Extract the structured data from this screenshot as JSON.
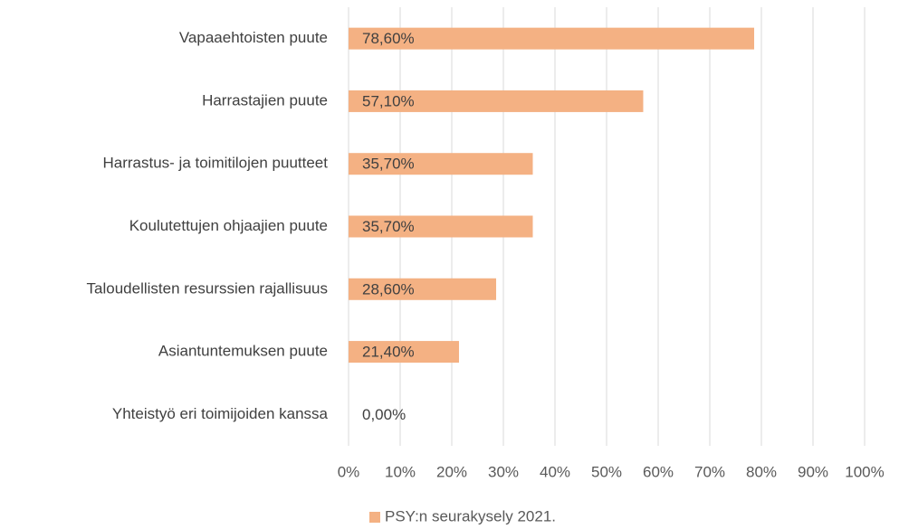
{
  "chart_data": {
    "type": "bar",
    "orientation": "horizontal",
    "categories": [
      "Vapaaehtoisten puute",
      "Harrastajien puute",
      "Harrastus- ja toimitilojen puutteet",
      "Koulutettujen ohjaajien puute",
      "Taloudellisten resurssien rajallisuus",
      "Asiantuntemuksen puute",
      "Yhteistyö eri toimijoiden kanssa"
    ],
    "series": [
      {
        "name": "PSY:n seurakysely 2021.",
        "color": "#f4b183",
        "values": [
          78.6,
          57.1,
          35.7,
          35.7,
          28.6,
          21.4,
          0
        ],
        "value_labels": [
          "78,60%",
          "57,10%",
          "35,70%",
          "35,70%",
          "28,60%",
          "21,40%",
          "0,00%"
        ]
      }
    ],
    "xlim": [
      0,
      100
    ],
    "xticks": [
      {
        "value": 0,
        "label": "0%"
      },
      {
        "value": 10,
        "label": "10%"
      },
      {
        "value": 20,
        "label": "20%"
      },
      {
        "value": 30,
        "label": "30%"
      },
      {
        "value": 40,
        "label": "40%"
      },
      {
        "value": 50,
        "label": "50%"
      },
      {
        "value": 60,
        "label": "60%"
      },
      {
        "value": 70,
        "label": "70%"
      },
      {
        "value": 80,
        "label": "80%"
      },
      {
        "value": 90,
        "label": "90%"
      },
      {
        "value": 100,
        "label": "100%"
      }
    ],
    "grid": true,
    "legend": "bottom"
  }
}
